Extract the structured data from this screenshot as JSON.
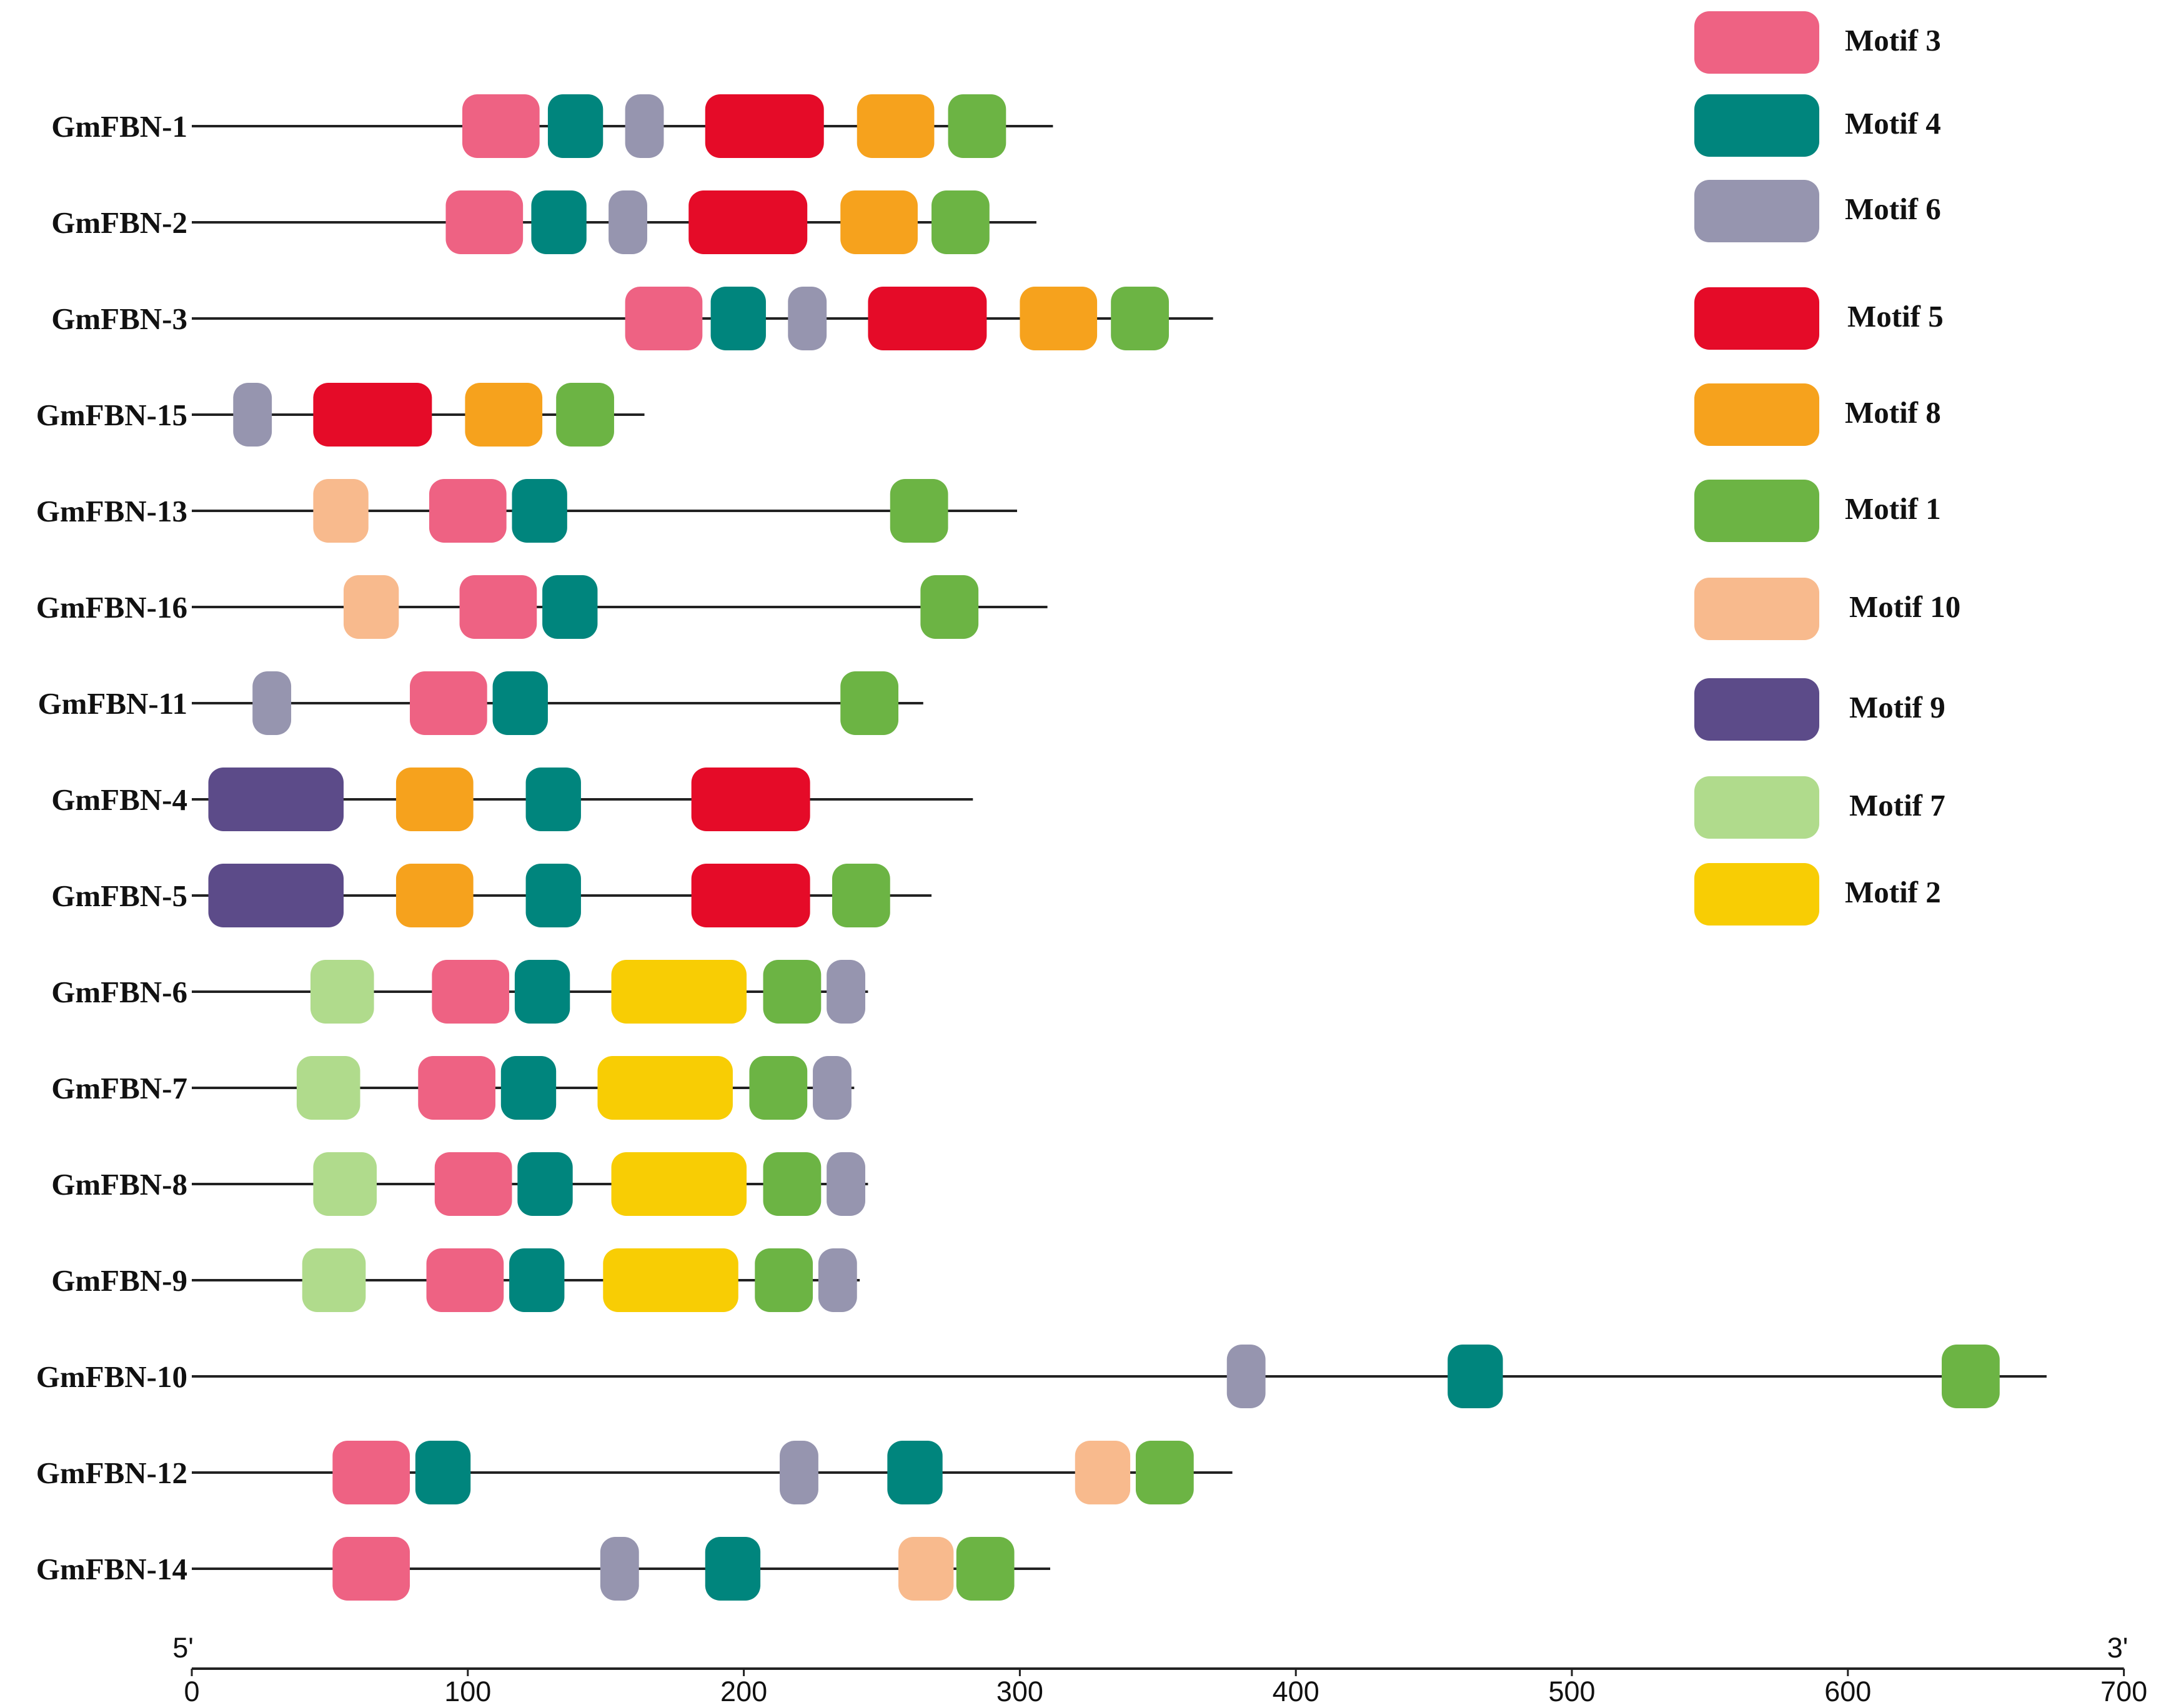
{
  "chart_data": {
    "type": "motif-diagram",
    "x_axis": {
      "min": 0,
      "max": 700,
      "ticks": [
        0,
        100,
        200,
        300,
        400,
        500,
        600,
        700
      ],
      "start_label": "5'",
      "end_label": "3'"
    },
    "motif_colors": {
      "Motif 3": "#ee6283",
      "Motif 4": "#00857d",
      "Motif 6": "#9695af",
      "Motif 5": "#e50b28",
      "Motif 8": "#f6a21d",
      "Motif 1": "#6cb444",
      "Motif 10": "#f8ba8d",
      "Motif 9": "#5c4b89",
      "Motif 7": "#b0db8c",
      "Motif 2": "#f8cd04"
    },
    "legend": [
      "Motif 3",
      "Motif 4",
      "Motif 6",
      "Motif 5",
      "Motif 8",
      "Motif 1",
      "Motif 10",
      "Motif 9",
      "Motif 7",
      "Motif 2"
    ],
    "genes": [
      {
        "name": "GmFBN-1",
        "length": 312,
        "motifs": [
          {
            "motif": "Motif 3",
            "start": 98,
            "end": 126
          },
          {
            "motif": "Motif 4",
            "start": 129,
            "end": 149
          },
          {
            "motif": "Motif 6",
            "start": 157,
            "end": 171
          },
          {
            "motif": "Motif 5",
            "start": 186,
            "end": 229
          },
          {
            "motif": "Motif 8",
            "start": 241,
            "end": 269
          },
          {
            "motif": "Motif 1",
            "start": 274,
            "end": 295
          }
        ]
      },
      {
        "name": "GmFBN-2",
        "length": 306,
        "motifs": [
          {
            "motif": "Motif 3",
            "start": 92,
            "end": 120
          },
          {
            "motif": "Motif 4",
            "start": 123,
            "end": 143
          },
          {
            "motif": "Motif 6",
            "start": 151,
            "end": 165
          },
          {
            "motif": "Motif 5",
            "start": 180,
            "end": 223
          },
          {
            "motif": "Motif 8",
            "start": 235,
            "end": 263
          },
          {
            "motif": "Motif 1",
            "start": 268,
            "end": 289
          }
        ]
      },
      {
        "name": "GmFBN-3",
        "length": 370,
        "motifs": [
          {
            "motif": "Motif 3",
            "start": 157,
            "end": 185
          },
          {
            "motif": "Motif 4",
            "start": 188,
            "end": 208
          },
          {
            "motif": "Motif 6",
            "start": 216,
            "end": 230
          },
          {
            "motif": "Motif 5",
            "start": 245,
            "end": 288
          },
          {
            "motif": "Motif 8",
            "start": 300,
            "end": 328
          },
          {
            "motif": "Motif 1",
            "start": 333,
            "end": 354
          }
        ]
      },
      {
        "name": "GmFBN-15",
        "length": 164,
        "motifs": [
          {
            "motif": "Motif 6",
            "start": 15,
            "end": 29
          },
          {
            "motif": "Motif 5",
            "start": 44,
            "end": 87
          },
          {
            "motif": "Motif 8",
            "start": 99,
            "end": 127
          },
          {
            "motif": "Motif 1",
            "start": 132,
            "end": 153
          }
        ]
      },
      {
        "name": "GmFBN-13",
        "length": 299,
        "motifs": [
          {
            "motif": "Motif 10",
            "start": 44,
            "end": 64
          },
          {
            "motif": "Motif 3",
            "start": 86,
            "end": 114
          },
          {
            "motif": "Motif 4",
            "start": 116,
            "end": 136
          },
          {
            "motif": "Motif 1",
            "start": 253,
            "end": 274
          }
        ]
      },
      {
        "name": "GmFBN-16",
        "length": 310,
        "motifs": [
          {
            "motif": "Motif 10",
            "start": 55,
            "end": 75
          },
          {
            "motif": "Motif 3",
            "start": 97,
            "end": 125
          },
          {
            "motif": "Motif 4",
            "start": 127,
            "end": 147
          },
          {
            "motif": "Motif 1",
            "start": 264,
            "end": 285
          }
        ]
      },
      {
        "name": "GmFBN-11",
        "length": 265,
        "motifs": [
          {
            "motif": "Motif 6",
            "start": 22,
            "end": 36
          },
          {
            "motif": "Motif 3",
            "start": 79,
            "end": 107
          },
          {
            "motif": "Motif 4",
            "start": 109,
            "end": 129
          },
          {
            "motif": "Motif 1",
            "start": 235,
            "end": 256
          }
        ]
      },
      {
        "name": "GmFBN-4",
        "length": 283,
        "motifs": [
          {
            "motif": "Motif 9",
            "start": 6,
            "end": 55
          },
          {
            "motif": "Motif 8",
            "start": 74,
            "end": 102
          },
          {
            "motif": "Motif 4",
            "start": 121,
            "end": 141
          },
          {
            "motif": "Motif 5",
            "start": 181,
            "end": 224
          }
        ]
      },
      {
        "name": "GmFBN-5",
        "length": 268,
        "motifs": [
          {
            "motif": "Motif 9",
            "start": 6,
            "end": 55
          },
          {
            "motif": "Motif 8",
            "start": 74,
            "end": 102
          },
          {
            "motif": "Motif 4",
            "start": 121,
            "end": 141
          },
          {
            "motif": "Motif 5",
            "start": 181,
            "end": 224
          },
          {
            "motif": "Motif 1",
            "start": 232,
            "end": 253
          }
        ]
      },
      {
        "name": "GmFBN-6",
        "length": 245,
        "motifs": [
          {
            "motif": "Motif 7",
            "start": 43,
            "end": 66
          },
          {
            "motif": "Motif 3",
            "start": 87,
            "end": 115
          },
          {
            "motif": "Motif 4",
            "start": 117,
            "end": 137
          },
          {
            "motif": "Motif 2",
            "start": 152,
            "end": 201
          },
          {
            "motif": "Motif 1",
            "start": 207,
            "end": 228
          },
          {
            "motif": "Motif 6",
            "start": 230,
            "end": 244
          }
        ]
      },
      {
        "name": "GmFBN-7",
        "length": 240,
        "motifs": [
          {
            "motif": "Motif 7",
            "start": 38,
            "end": 61
          },
          {
            "motif": "Motif 3",
            "start": 82,
            "end": 110
          },
          {
            "motif": "Motif 4",
            "start": 112,
            "end": 132
          },
          {
            "motif": "Motif 2",
            "start": 147,
            "end": 196
          },
          {
            "motif": "Motif 1",
            "start": 202,
            "end": 223
          },
          {
            "motif": "Motif 6",
            "start": 225,
            "end": 239
          }
        ]
      },
      {
        "name": "GmFBN-8",
        "length": 245,
        "motifs": [
          {
            "motif": "Motif 7",
            "start": 44,
            "end": 67
          },
          {
            "motif": "Motif 3",
            "start": 88,
            "end": 116
          },
          {
            "motif": "Motif 4",
            "start": 118,
            "end": 138
          },
          {
            "motif": "Motif 2",
            "start": 152,
            "end": 201
          },
          {
            "motif": "Motif 1",
            "start": 207,
            "end": 228
          },
          {
            "motif": "Motif 6",
            "start": 230,
            "end": 244
          }
        ]
      },
      {
        "name": "GmFBN-9",
        "length": 242,
        "motifs": [
          {
            "motif": "Motif 7",
            "start": 40,
            "end": 63
          },
          {
            "motif": "Motif 3",
            "start": 85,
            "end": 113
          },
          {
            "motif": "Motif 4",
            "start": 115,
            "end": 135
          },
          {
            "motif": "Motif 2",
            "start": 149,
            "end": 198
          },
          {
            "motif": "Motif 1",
            "start": 204,
            "end": 225
          },
          {
            "motif": "Motif 6",
            "start": 227,
            "end": 241
          }
        ]
      },
      {
        "name": "GmFBN-10",
        "length": 672,
        "motifs": [
          {
            "motif": "Motif 6",
            "start": 375,
            "end": 389
          },
          {
            "motif": "Motif 4",
            "start": 455,
            "end": 475
          },
          {
            "motif": "Motif 1",
            "start": 634,
            "end": 655
          }
        ]
      },
      {
        "name": "GmFBN-12",
        "length": 377,
        "motifs": [
          {
            "motif": "Motif 3",
            "start": 51,
            "end": 79
          },
          {
            "motif": "Motif 4",
            "start": 81,
            "end": 101
          },
          {
            "motif": "Motif 6",
            "start": 213,
            "end": 227
          },
          {
            "motif": "Motif 4",
            "start": 252,
            "end": 272
          },
          {
            "motif": "Motif 10",
            "start": 320,
            "end": 340
          },
          {
            "motif": "Motif 1",
            "start": 342,
            "end": 363
          }
        ]
      },
      {
        "name": "GmFBN-14",
        "length": 311,
        "motifs": [
          {
            "motif": "Motif 3",
            "start": 51,
            "end": 79
          },
          {
            "motif": "Motif 6",
            "start": 148,
            "end": 162
          },
          {
            "motif": "Motif 4",
            "start": 186,
            "end": 206
          },
          {
            "motif": "Motif 10",
            "start": 256,
            "end": 276
          },
          {
            "motif": "Motif 1",
            "start": 277,
            "end": 298
          }
        ]
      }
    ]
  }
}
